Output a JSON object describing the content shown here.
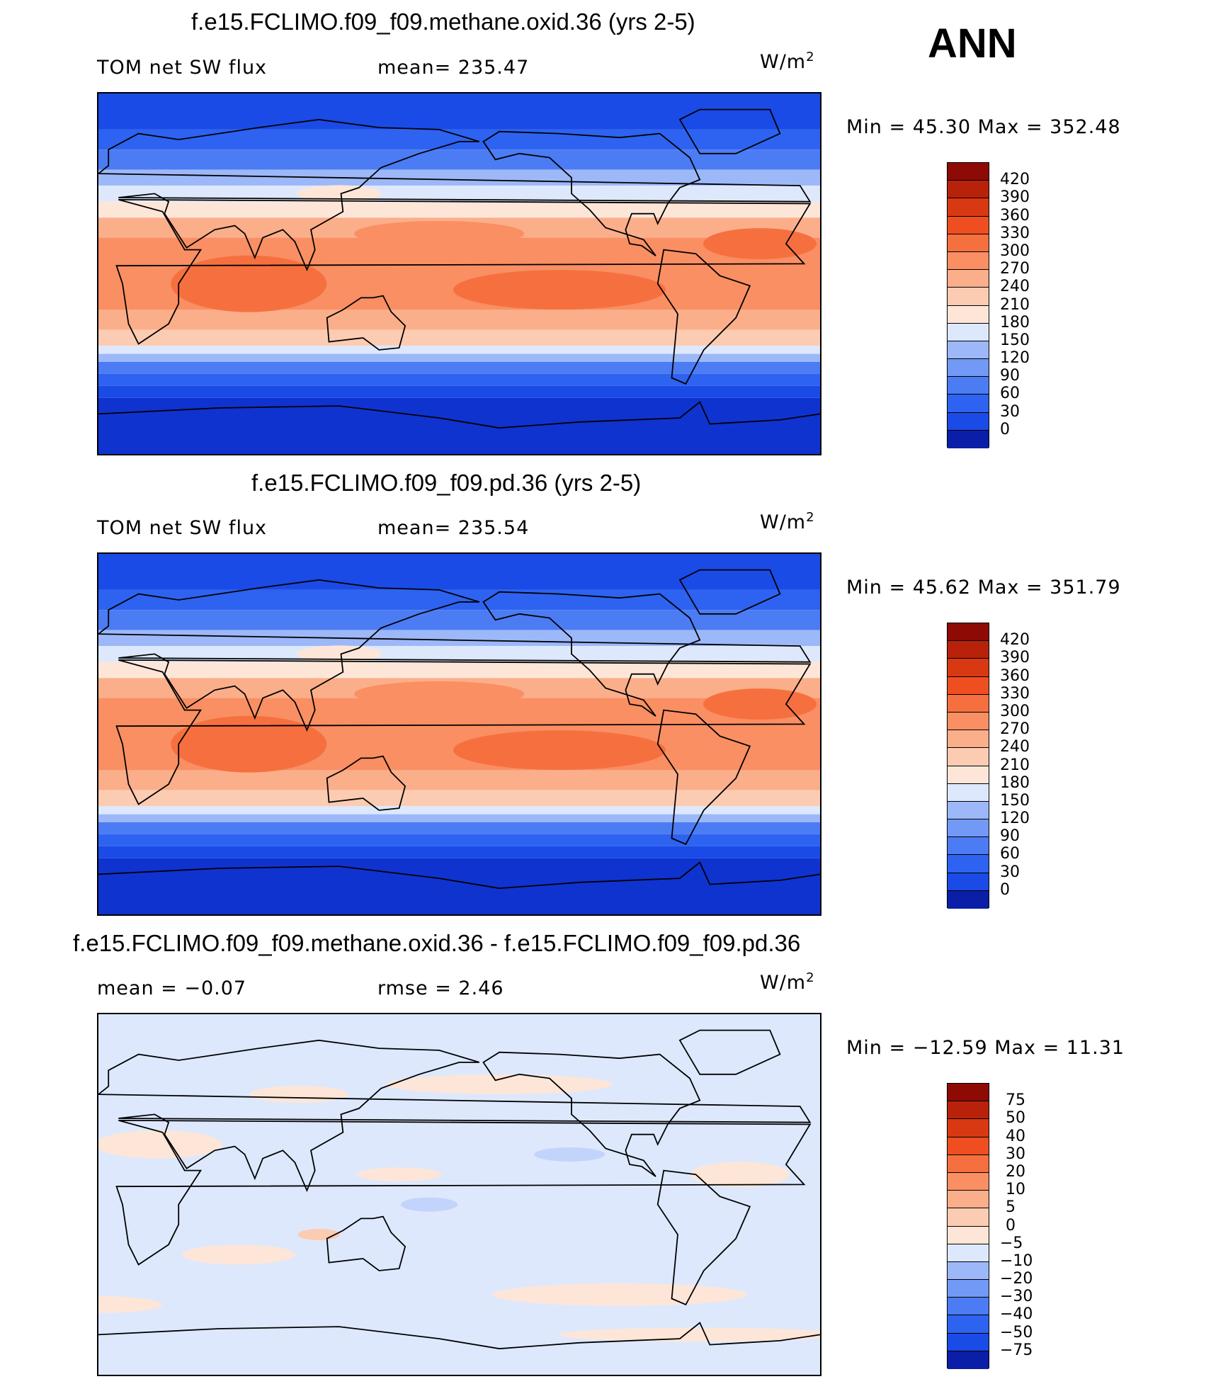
{
  "season": "ANN",
  "colors": {
    "abs_levels": [
      "#0a0a7a",
      "#0b1ea8",
      "#0f33cf",
      "#1a4be6",
      "#2d63f0",
      "#4c7cf3",
      "#7399f6",
      "#9db8f9",
      "#c2d4fb",
      "#dde8fd",
      "#fde6d8",
      "#fcccb2",
      "#fbae8a",
      "#f98f63",
      "#f6703f",
      "#ef4e20",
      "#d93912",
      "#b8220a",
      "#8e0b05"
    ],
    "diff_levels": [
      "#0a0a7a",
      "#0b1ea8",
      "#0f33cf",
      "#1a4be6",
      "#2d63f0",
      "#4c7cf3",
      "#7399f6",
      "#9db8f9",
      "#c2d4fb",
      "#dde8fd",
      "#fde6d8",
      "#fcccb2",
      "#fbae8a",
      "#f98f63",
      "#f6703f",
      "#ef4e20",
      "#d93912",
      "#b8220a",
      "#8e0b05"
    ]
  },
  "panels": [
    {
      "title": "f.e15.FCLIMO.f09_f09.methane.oxid.36 (yrs 2-5)",
      "left_label": "TOM net SW flux",
      "mid_label": "mean=  235.47",
      "units_main": "W/m",
      "units_exp": "2",
      "minmax": "Min =   45.30 Max =  352.48",
      "type": "abs",
      "levels": [
        "420",
        "390",
        "360",
        "330",
        "300",
        "270",
        "240",
        "210",
        "180",
        "150",
        "120",
        "90",
        "60",
        "30",
        "0"
      ]
    },
    {
      "title": "f.e15.FCLIMO.f09_f09.pd.36 (yrs 2-5)",
      "left_label": "TOM net SW flux",
      "mid_label": "mean=  235.54",
      "units_main": "W/m",
      "units_exp": "2",
      "minmax": "Min =   45.62 Max =  351.79",
      "type": "abs",
      "levels": [
        "420",
        "390",
        "360",
        "330",
        "300",
        "270",
        "240",
        "210",
        "180",
        "150",
        "120",
        "90",
        "60",
        "30",
        "0"
      ]
    },
    {
      "title": "f.e15.FCLIMO.f09_f09.methane.oxid.36 - f.e15.FCLIMO.f09_f09.pd.36",
      "left_label": "mean =   −0.07",
      "mid_label": "rmse =    2.46",
      "units_main": "W/m",
      "units_exp": "2",
      "minmax": "Min = −12.59 Max =   11.31",
      "type": "diff",
      "levels": [
        "75",
        "50",
        "40",
        "30",
        "20",
        "10",
        "5",
        "0",
        "−5",
        "−10",
        "−20",
        "−30",
        "−40",
        "−50",
        "−75"
      ]
    }
  ]
}
